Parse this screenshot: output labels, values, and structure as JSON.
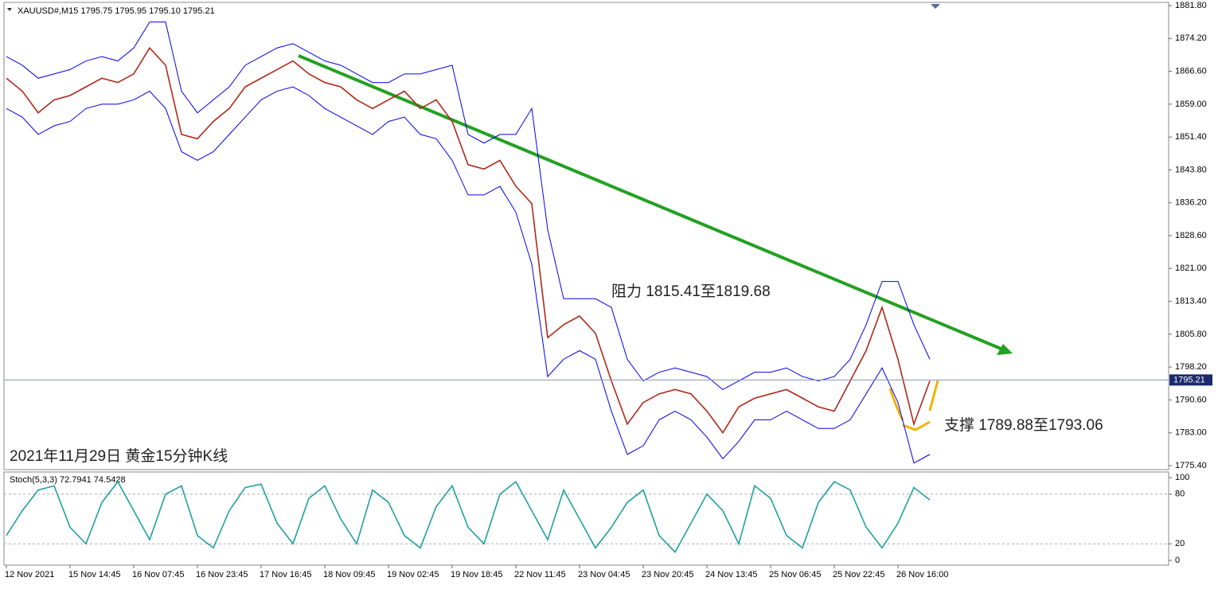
{
  "chart_data": [
    {
      "type": "line",
      "title": "XAUUSD#,M15  1795.75 1795.95 1795.10 1795.21",
      "annotations": [
        "阻力 1815.41至1819.68",
        "支撑 1789.88至1793.06",
        "2021年11月29日 黄金15分钟K线"
      ],
      "categories": [
        "12 Nov 2021",
        null,
        null,
        null,
        "15 Nov 14:45",
        null,
        null,
        null,
        "16 Nov 07:45",
        null,
        null,
        null,
        "16 Nov 23:45",
        null,
        null,
        null,
        "17 Nov 16:45",
        null,
        null,
        null,
        "18 Nov 09:45",
        null,
        null,
        null,
        "19 Nov 02:45",
        null,
        null,
        null,
        "19 Nov 18:45",
        null,
        null,
        null,
        "22 Nov 11:45",
        null,
        null,
        null,
        "23 Nov 04:45",
        null,
        null,
        null,
        "23 Nov 20:45",
        null,
        null,
        null,
        "24 Nov 13:45",
        null,
        null,
        null,
        "25 Nov 06:45",
        null,
        null,
        null,
        "25 Nov 22:45",
        null,
        null,
        null,
        "26 Nov 16:00",
        null,
        null
      ],
      "series": [
        {
          "color": "#b02818",
          "values": [
            1865,
            1862,
            1857,
            1860,
            1861,
            1863,
            1865,
            1864,
            1866,
            1872,
            1868,
            1852,
            1851,
            1855,
            1858,
            1863,
            1865,
            1867,
            1869,
            1866,
            1864,
            1863,
            1860,
            1858,
            1860,
            1862,
            1858,
            1860,
            1855,
            1845,
            1844,
            1846,
            1840,
            1836,
            1805,
            1808,
            1810,
            1806,
            1795,
            1785,
            1790,
            1792,
            1793,
            1792,
            1788,
            1783,
            1789,
            1791,
            1792,
            1793,
            1791,
            1789,
            1788,
            1795,
            1802,
            1812,
            1800,
            1785,
            1795
          ]
        },
        {
          "color": "#0000ee",
          "values": [
            1870,
            1868,
            1865,
            1866,
            1867,
            1869,
            1870,
            1869,
            1872,
            1878,
            1878,
            1862,
            1857,
            1860,
            1863,
            1868,
            1870,
            1872,
            1873,
            1871,
            1869,
            1868,
            1866,
            1864,
            1864,
            1866,
            1866,
            1867,
            1868,
            1852,
            1850,
            1852,
            1852,
            1858,
            1830,
            1814,
            1814,
            1814,
            1812,
            1800,
            1795,
            1797,
            1798,
            1797,
            1796,
            1793,
            1795,
            1797,
            1797,
            1798,
            1796,
            1795,
            1796,
            1800,
            1808,
            1818,
            1818,
            1808,
            1800
          ]
        },
        {
          "color": "#0000ee",
          "values": [
            1858,
            1856,
            1852,
            1854,
            1855,
            1858,
            1859,
            1859,
            1860,
            1862,
            1858,
            1848,
            1846,
            1848,
            1852,
            1856,
            1860,
            1862,
            1863,
            1861,
            1858,
            1856,
            1854,
            1852,
            1855,
            1856,
            1852,
            1851,
            1846,
            1838,
            1838,
            1840,
            1834,
            1822,
            1796,
            1800,
            1802,
            1800,
            1788,
            1778,
            1780,
            1786,
            1788,
            1786,
            1782,
            1777,
            1781,
            1786,
            1786,
            1788,
            1786,
            1784,
            1784,
            1786,
            1792,
            1798,
            1790,
            1776,
            1778
          ]
        }
      ],
      "last_price": 1795.21,
      "ylim": [
        1775.4,
        1881.8
      ],
      "yticks": [
        {
          "value": 1881.8,
          "label": "1881.80"
        },
        {
          "value": 1874.2,
          "label": "1874.20"
        },
        {
          "value": 1866.6,
          "label": "1866.60"
        },
        {
          "value": 1859,
          "label": "1859.00"
        },
        {
          "value": 1851.4,
          "label": "1851.40"
        },
        {
          "value": 1843.8,
          "label": "1843.80"
        },
        {
          "value": 1836.2,
          "label": "1836.20"
        },
        {
          "value": 1828.6,
          "label": "1828.60"
        },
        {
          "value": 1821,
          "label": "1821.00"
        },
        {
          "value": 1813.4,
          "label": "1813.40"
        },
        {
          "value": 1805.8,
          "label": "1805.80"
        },
        {
          "value": 1798.2,
          "label": "1798.20"
        },
        {
          "value": 1790.6,
          "label": "1790.60"
        },
        {
          "value": 1783,
          "label": "1783.00"
        },
        {
          "value": 1775.4,
          "label": "1775.40"
        }
      ]
    },
    {
      "type": "line",
      "title": "Stoch(5,3,3) 72.7941 74.5428",
      "series": [
        {
          "color": "#20a0a0",
          "values": [
            30,
            60,
            85,
            90,
            40,
            20,
            70,
            95,
            60,
            25,
            80,
            90,
            30,
            15,
            60,
            88,
            92,
            45,
            20,
            75,
            90,
            50,
            20,
            85,
            70,
            30,
            15,
            65,
            90,
            40,
            20,
            80,
            95,
            60,
            25,
            85,
            50,
            15,
            40,
            70,
            85,
            30,
            10,
            45,
            80,
            60,
            20,
            90,
            75,
            30,
            15,
            70,
            95,
            85,
            40,
            15,
            45,
            88,
            73
          ]
        }
      ],
      "ylim": [
        0,
        100
      ],
      "yticks": [
        0,
        20,
        80,
        100
      ]
    }
  ]
}
